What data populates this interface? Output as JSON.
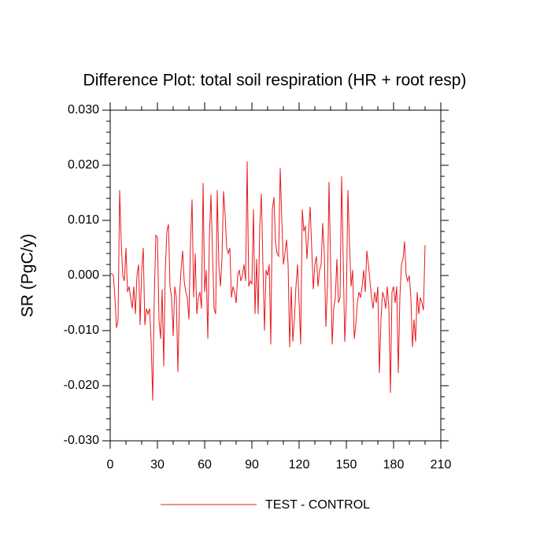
{
  "chart_data": {
    "type": "line",
    "title": "Difference Plot: total soil respiration (HR + root resp)",
    "y_label": "SR  (PgC/y)",
    "x": [
      0,
      1,
      2,
      3,
      4,
      5,
      6,
      7,
      8,
      9,
      10,
      11,
      12,
      13,
      14,
      15,
      16,
      17,
      18,
      19,
      20,
      21,
      22,
      23,
      24,
      25,
      26,
      27,
      28,
      29,
      30,
      31,
      32,
      33,
      34,
      35,
      36,
      37,
      38,
      39,
      40,
      41,
      42,
      43,
      44,
      45,
      46,
      47,
      48,
      49,
      50,
      51,
      52,
      53,
      54,
      55,
      56,
      57,
      58,
      59,
      60,
      61,
      62,
      63,
      64,
      65,
      66,
      67,
      68,
      69,
      70,
      71,
      72,
      73,
      74,
      75,
      76,
      77,
      78,
      79,
      80,
      81,
      82,
      83,
      84,
      85,
      86,
      87,
      88,
      89,
      90,
      91,
      92,
      93,
      94,
      95,
      96,
      97,
      98,
      99,
      100,
      101,
      102,
      103,
      104,
      105,
      106,
      107,
      108,
      109,
      110,
      111,
      112,
      113,
      114,
      115,
      116,
      117,
      118,
      119,
      120,
      121,
      122,
      123,
      124,
      125,
      126,
      127,
      128,
      129,
      130,
      131,
      132,
      133,
      134,
      135,
      136,
      137,
      138,
      139,
      140,
      141,
      142,
      143,
      144,
      145,
      146,
      147,
      148,
      149,
      150,
      151,
      152,
      153,
      154,
      155,
      156,
      157,
      158,
      159,
      160,
      161,
      162,
      163,
      164,
      165,
      166,
      167,
      168,
      169,
      170,
      171,
      172,
      173,
      174,
      175,
      176,
      177,
      178,
      179,
      180,
      181,
      182,
      183,
      184,
      185,
      186,
      187,
      188,
      189,
      190,
      191,
      192,
      193,
      194,
      195,
      196,
      197,
      198,
      199,
      200
    ],
    "series": [
      {
        "name": "TEST - CONTROL",
        "color": "#e8191c",
        "values": [
          0.0003,
          0.0003,
          0.0,
          -0.004,
          -0.0095,
          -0.008,
          0.0155,
          0.006,
          0.0,
          -0.001,
          0.005,
          -0.003,
          -0.002,
          -0.004,
          -0.006,
          -0.002,
          -0.007,
          0.0,
          0.002,
          -0.009,
          0.001,
          0.005,
          -0.009,
          -0.006,
          -0.007,
          -0.006,
          -0.012,
          -0.0227,
          -0.004,
          0.0073,
          0.0068,
          -0.008,
          -0.0115,
          -0.0025,
          -0.0165,
          0.001,
          0.008,
          0.0093,
          -0.002,
          -0.004,
          -0.011,
          -0.002,
          -0.004,
          -0.0175,
          -0.004,
          0.001,
          0.0045,
          -0.001,
          -0.003,
          -0.004,
          -0.008,
          0.006,
          0.0138,
          -0.004,
          0.004,
          -0.007,
          -0.004,
          -0.003,
          -0.006,
          0.0168,
          -0.003,
          0.001,
          -0.0115,
          0.007,
          0.0147,
          0.004,
          -0.006,
          -0.007,
          0.0155,
          0.002,
          -0.002,
          0.003,
          0.0153,
          0.011,
          0.005,
          0.004,
          0.005,
          -0.004,
          -0.002,
          -0.003,
          -0.005,
          0.0,
          0.001,
          -0.001,
          0.0,
          0.002,
          -0.001,
          0.0207,
          -0.002,
          -0.001,
          -0.0015,
          0.012,
          -0.007,
          0.003,
          -0.007,
          0.009,
          0.0148,
          0.002,
          -0.01,
          0.001,
          0.0,
          0.002,
          -0.0125,
          0.012,
          0.0142,
          0.006,
          0.004,
          0.0035,
          0.0195,
          0.01,
          0.002,
          0.004,
          0.0065,
          0.002,
          -0.013,
          -0.002,
          -0.012,
          -0.008,
          -0.002,
          0.002,
          -0.005,
          -0.0125,
          0.012,
          0.008,
          0.009,
          0.003,
          0.008,
          0.0125,
          0.005,
          -0.0025,
          0.002,
          0.0035,
          -0.002,
          0.001,
          0.002,
          0.0095,
          0.004,
          -0.0093,
          -0.002,
          0.017,
          0.002,
          -0.0125,
          -0.006,
          -0.004,
          0.003,
          -0.005,
          -0.004,
          0.018,
          0.003,
          -0.012,
          -0.005,
          0.0155,
          0.006,
          -0.002,
          0.001,
          -0.0115,
          -0.009,
          -0.005,
          -0.003,
          -0.004,
          -0.002,
          0.001,
          -0.003,
          0.0045,
          0.002,
          -0.001,
          -0.004,
          -0.006,
          -0.003,
          -0.005,
          -0.002,
          -0.0177,
          -0.008,
          -0.003,
          -0.004,
          -0.006,
          -0.002,
          -0.006,
          -0.0213,
          -0.003,
          -0.002,
          -0.005,
          -0.002,
          -0.0177,
          -0.004,
          0.002,
          0.003,
          0.0062,
          0.0,
          -0.001,
          0.0,
          -0.004,
          -0.013,
          -0.008,
          -0.012,
          -0.003,
          -0.007,
          -0.004,
          -0.005,
          -0.0063,
          0.0055
        ]
      }
    ],
    "xlim": [
      0,
      210
    ],
    "xticks": [
      0,
      30,
      60,
      90,
      120,
      150,
      180,
      210
    ],
    "ylim": [
      -0.03,
      0.03
    ],
    "yticks": [
      {
        "value": -0.03,
        "label": "-0.030"
      },
      {
        "value": -0.02,
        "label": "-0.020"
      },
      {
        "value": -0.01,
        "label": "-0.010"
      },
      {
        "value": 0,
        "label": "0.000"
      },
      {
        "value": 0.01,
        "label": "0.010"
      },
      {
        "value": 0.02,
        "label": "0.020"
      },
      {
        "value": 0.03,
        "label": "0.030"
      }
    ],
    "grid": false
  }
}
